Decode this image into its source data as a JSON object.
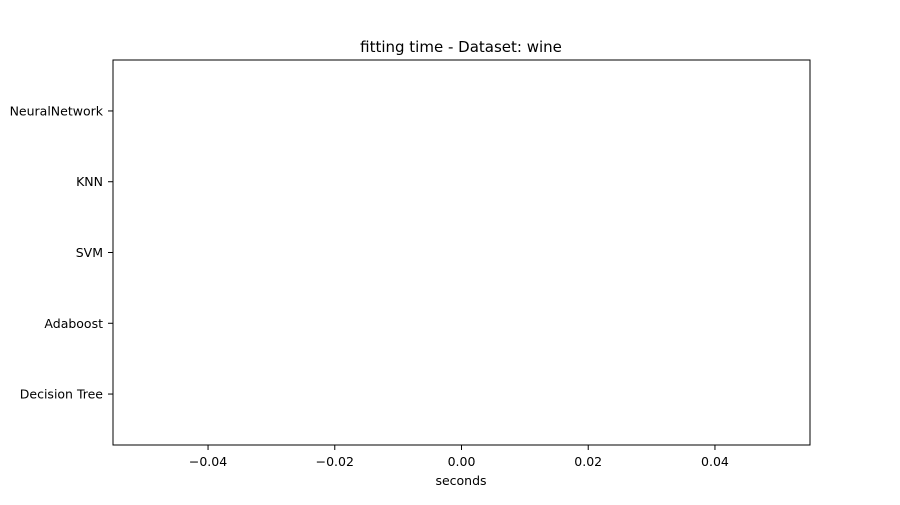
{
  "chart_data": {
    "type": "bar",
    "orientation": "horizontal",
    "title": "fitting time - Dataset: wine",
    "xlabel": "seconds",
    "ylabel": "",
    "categories": [
      "Decision Tree",
      "Adaboost",
      "SVM",
      "KNN",
      "NeuralNetwork"
    ],
    "values": [
      0,
      0,
      0,
      0,
      0
    ],
    "xlim": [
      -0.055,
      0.055
    ],
    "xticks": [
      -0.04,
      -0.02,
      0.0,
      0.02,
      0.04
    ],
    "xtick_labels": [
      "−0.04",
      "−0.02",
      "0.00",
      "0.02",
      "0.04"
    ],
    "grid": false,
    "legend": "none",
    "colors": {
      "axes": "#000000",
      "background": "#ffffff"
    }
  }
}
